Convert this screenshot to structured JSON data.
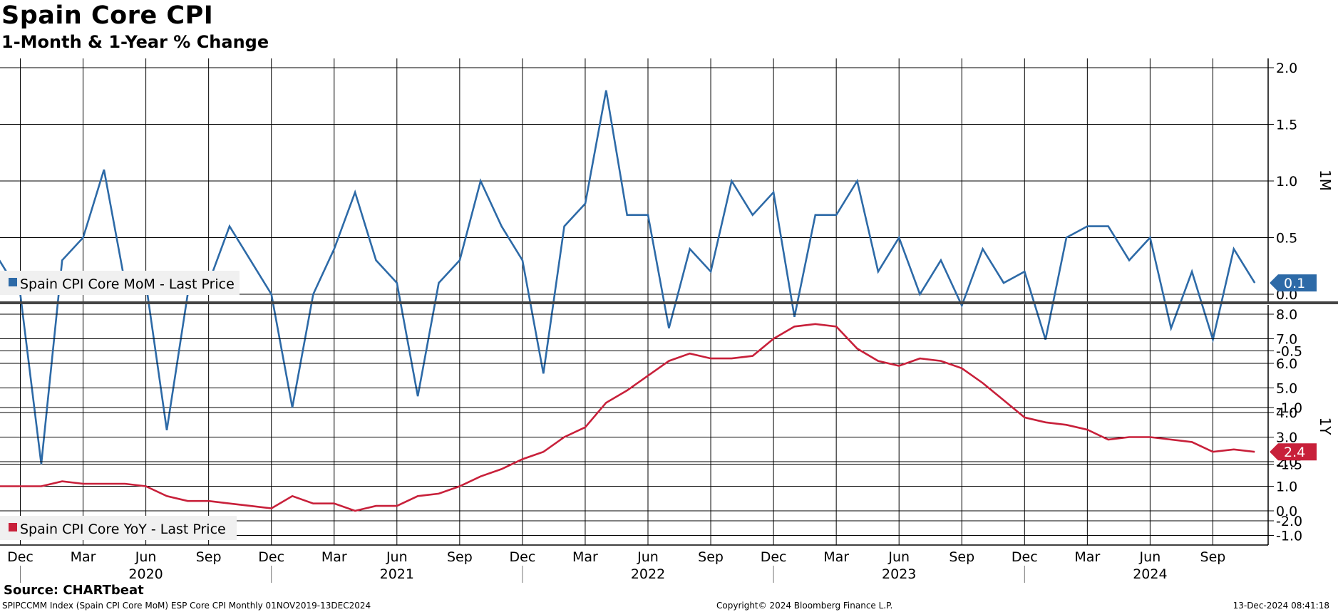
{
  "title": "Spain Core CPI",
  "subtitle": "1-Month & 1-Year % Change",
  "source": "Source: CHARTbeat",
  "footer": {
    "left": "SPIPCCMM Index (Spain CPI Core MoM) ESP Core CPI  Monthly 01NOV2019-13DEC2024",
    "center": "Copyright© 2024 Bloomberg Finance L.P.",
    "right": "13-Dec-2024 08:41:18"
  },
  "colors": {
    "mom": "#2d6aa7",
    "yoy": "#c8203a",
    "grid": "#000000"
  },
  "chart_data": [
    {
      "type": "line",
      "panel_label": "1M",
      "ylim": [
        -2.0,
        2.0
      ],
      "yticks": [
        "2.0",
        "1.5",
        "1.0",
        "0.5",
        "0.0",
        "-0.5",
        "-1.0",
        "-1.5",
        "-2.0"
      ],
      "grid": true,
      "legend_placement": "bottom-left",
      "last_value_label": "0.1",
      "x": [
        "2019-11",
        "2019-12",
        "2020-01",
        "2020-02",
        "2020-03",
        "2020-04",
        "2020-05",
        "2020-06",
        "2020-07",
        "2020-08",
        "2020-09",
        "2020-10",
        "2020-11",
        "2020-12",
        "2021-01",
        "2021-02",
        "2021-03",
        "2021-04",
        "2021-05",
        "2021-06",
        "2021-07",
        "2021-08",
        "2021-09",
        "2021-10",
        "2021-11",
        "2021-12",
        "2022-01",
        "2022-02",
        "2022-03",
        "2022-04",
        "2022-05",
        "2022-06",
        "2022-07",
        "2022-08",
        "2022-09",
        "2022-10",
        "2022-11",
        "2022-12",
        "2023-01",
        "2023-02",
        "2023-03",
        "2023-04",
        "2023-05",
        "2023-06",
        "2023-07",
        "2023-08",
        "2023-09",
        "2023-10",
        "2023-11",
        "2023-12",
        "2024-01",
        "2024-02",
        "2024-03",
        "2024-04",
        "2024-05",
        "2024-06",
        "2024-07",
        "2024-08",
        "2024-09",
        "2024-10",
        "2024-11"
      ],
      "series": [
        {
          "name": "Spain CPI Core MoM - Last Price",
          "values": [
            0.3,
            0.0,
            -1.5,
            0.3,
            0.5,
            1.1,
            0.1,
            0.1,
            -1.2,
            0.0,
            0.1,
            0.6,
            0.3,
            0.0,
            -1.0,
            0.0,
            0.4,
            0.9,
            0.3,
            0.1,
            -0.9,
            0.1,
            0.3,
            1.0,
            0.6,
            0.3,
            -0.7,
            0.6,
            0.8,
            1.8,
            0.7,
            0.7,
            -0.3,
            0.4,
            0.2,
            1.0,
            0.7,
            0.9,
            -0.2,
            0.7,
            0.7,
            1.0,
            0.2,
            0.5,
            0.0,
            0.3,
            -0.1,
            0.4,
            0.1,
            0.2,
            -0.4,
            0.5,
            0.6,
            0.6,
            0.3,
            0.5,
            -0.3,
            0.2,
            -0.4,
            0.4,
            0.1
          ]
        }
      ]
    },
    {
      "type": "line",
      "panel_label": "1Y",
      "ylim": [
        -1.0,
        8.0
      ],
      "yticks": [
        "8.0",
        "7.0",
        "6.0",
        "5.0",
        "4.0",
        "3.0",
        "2.0",
        "1.0",
        "0.0",
        "-1.0"
      ],
      "grid": true,
      "legend_placement": "bottom-left",
      "last_value_label": "2.4",
      "x": [
        "2019-11",
        "2019-12",
        "2020-01",
        "2020-02",
        "2020-03",
        "2020-04",
        "2020-05",
        "2020-06",
        "2020-07",
        "2020-08",
        "2020-09",
        "2020-10",
        "2020-11",
        "2020-12",
        "2021-01",
        "2021-02",
        "2021-03",
        "2021-04",
        "2021-05",
        "2021-06",
        "2021-07",
        "2021-08",
        "2021-09",
        "2021-10",
        "2021-11",
        "2021-12",
        "2022-01",
        "2022-02",
        "2022-03",
        "2022-04",
        "2022-05",
        "2022-06",
        "2022-07",
        "2022-08",
        "2022-09",
        "2022-10",
        "2022-11",
        "2022-12",
        "2023-01",
        "2023-02",
        "2023-03",
        "2023-04",
        "2023-05",
        "2023-06",
        "2023-07",
        "2023-08",
        "2023-09",
        "2023-10",
        "2023-11",
        "2023-12",
        "2024-01",
        "2024-02",
        "2024-03",
        "2024-04",
        "2024-05",
        "2024-06",
        "2024-07",
        "2024-08",
        "2024-09",
        "2024-10",
        "2024-11"
      ],
      "series": [
        {
          "name": "Spain CPI Core YoY - Last Price",
          "values": [
            1.0,
            1.0,
            1.0,
            1.2,
            1.1,
            1.1,
            1.1,
            1.0,
            0.6,
            0.4,
            0.4,
            0.3,
            0.2,
            0.1,
            0.6,
            0.3,
            0.3,
            0.0,
            0.2,
            0.2,
            0.6,
            0.7,
            1.0,
            1.4,
            1.7,
            2.1,
            2.4,
            3.0,
            3.4,
            4.4,
            4.9,
            5.5,
            6.1,
            6.4,
            6.2,
            6.2,
            6.3,
            7.0,
            7.5,
            7.6,
            7.5,
            6.6,
            6.1,
            5.9,
            6.2,
            6.1,
            5.8,
            5.2,
            4.5,
            3.8,
            3.6,
            3.5,
            3.3,
            2.9,
            3.0,
            3.0,
            2.9,
            2.8,
            2.4,
            2.5,
            2.4
          ]
        }
      ]
    }
  ],
  "x_axis": {
    "month_ticks": [
      {
        "month": "2019-12",
        "label": "Dec"
      },
      {
        "month": "2020-03",
        "label": "Mar"
      },
      {
        "month": "2020-06",
        "label": "Jun"
      },
      {
        "month": "2020-09",
        "label": "Sep"
      },
      {
        "month": "2020-12",
        "label": "Dec"
      },
      {
        "month": "2021-03",
        "label": "Mar"
      },
      {
        "month": "2021-06",
        "label": "Jun"
      },
      {
        "month": "2021-09",
        "label": "Sep"
      },
      {
        "month": "2021-12",
        "label": "Dec"
      },
      {
        "month": "2022-03",
        "label": "Mar"
      },
      {
        "month": "2022-06",
        "label": "Jun"
      },
      {
        "month": "2022-09",
        "label": "Sep"
      },
      {
        "month": "2022-12",
        "label": "Dec"
      },
      {
        "month": "2023-03",
        "label": "Mar"
      },
      {
        "month": "2023-06",
        "label": "Jun"
      },
      {
        "month": "2023-09",
        "label": "Sep"
      },
      {
        "month": "2023-12",
        "label": "Dec"
      },
      {
        "month": "2024-03",
        "label": "Mar"
      },
      {
        "month": "2024-06",
        "label": "Jun"
      },
      {
        "month": "2024-09",
        "label": "Sep"
      }
    ],
    "year_labels": [
      {
        "month": "2020-06",
        "label": "2020"
      },
      {
        "month": "2021-06",
        "label": "2021"
      },
      {
        "month": "2022-06",
        "label": "2022"
      },
      {
        "month": "2023-06",
        "label": "2023"
      },
      {
        "month": "2024-06",
        "label": "2024"
      }
    ]
  }
}
